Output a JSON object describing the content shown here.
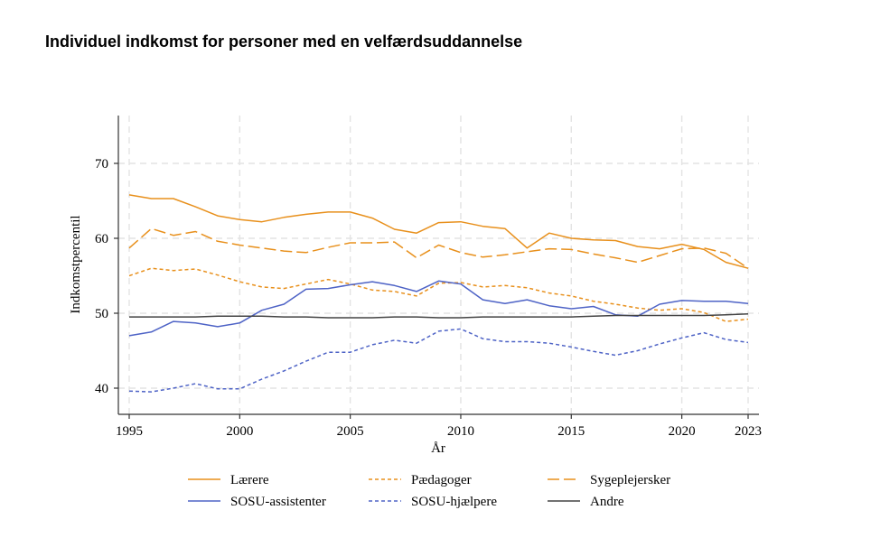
{
  "title": "Individuel indkomst for personer med en velfærdsuddannelse",
  "chart_data": {
    "type": "line",
    "title": "Individuel indkomst for personer med en velfærdsuddannelse",
    "xlabel": "År",
    "ylabel": "Indkomstpercentil",
    "x": [
      1995,
      1996,
      1997,
      1998,
      1999,
      2000,
      2001,
      2002,
      2003,
      2004,
      2005,
      2006,
      2007,
      2008,
      2009,
      2010,
      2011,
      2012,
      2013,
      2014,
      2015,
      2016,
      2017,
      2018,
      2019,
      2020,
      2021,
      2022,
      2023
    ],
    "xticks": [
      1995,
      2000,
      2005,
      2010,
      2015,
      2020,
      2023
    ],
    "yticks": [
      40,
      50,
      60,
      70
    ],
    "xlim": [
      1995,
      2023
    ],
    "ylim": [
      36.5,
      76
    ],
    "grid": true,
    "legend_position": "bottom",
    "series": [
      {
        "name": "Lærere",
        "color": "#E8901C",
        "dash": "solid",
        "values": [
          65.8,
          65.3,
          65.3,
          64.2,
          63.0,
          62.5,
          62.2,
          62.8,
          63.2,
          63.5,
          63.5,
          62.7,
          61.2,
          60.7,
          62.1,
          62.2,
          61.6,
          61.3,
          58.7,
          60.7,
          60.0,
          59.8,
          59.7,
          58.9,
          58.6,
          59.2,
          58.5,
          56.8,
          56.0
        ]
      },
      {
        "name": "Pædagoger",
        "color": "#E8901C",
        "dash": "short",
        "values": [
          55.0,
          56.0,
          55.7,
          55.9,
          55.1,
          54.2,
          53.5,
          53.3,
          53.9,
          54.5,
          53.9,
          53.1,
          52.9,
          52.3,
          54.0,
          54.1,
          53.5,
          53.7,
          53.4,
          52.7,
          52.3,
          51.6,
          51.2,
          50.7,
          50.4,
          50.6,
          50.1,
          48.9,
          49.2
        ]
      },
      {
        "name": "Sygeplejersker",
        "color": "#E8901C",
        "dash": "long",
        "values": [
          58.7,
          61.3,
          60.4,
          60.9,
          59.6,
          59.1,
          58.7,
          58.3,
          58.1,
          58.8,
          59.4,
          59.4,
          59.5,
          57.4,
          59.1,
          58.1,
          57.5,
          57.8,
          58.2,
          58.6,
          58.5,
          57.9,
          57.4,
          56.8,
          57.7,
          58.6,
          58.7,
          58.0,
          56.0
        ]
      },
      {
        "name": "SOSU-assistenter",
        "color": "#4E63C6",
        "dash": "solid",
        "values": [
          47.0,
          47.5,
          48.9,
          48.7,
          48.2,
          48.7,
          50.4,
          51.2,
          53.2,
          53.3,
          53.8,
          54.2,
          53.7,
          52.9,
          54.3,
          53.9,
          51.8,
          51.3,
          51.8,
          51.0,
          50.6,
          50.9,
          49.8,
          49.6,
          51.2,
          51.7,
          51.6,
          51.6,
          51.3
        ]
      },
      {
        "name": "SOSU-hjælpere",
        "color": "#4E63C6",
        "dash": "short",
        "values": [
          39.6,
          39.5,
          40.0,
          40.6,
          39.9,
          39.9,
          41.2,
          42.3,
          43.6,
          44.8,
          44.8,
          45.8,
          46.4,
          46.0,
          47.6,
          47.9,
          46.6,
          46.2,
          46.2,
          46.0,
          45.5,
          44.9,
          44.4,
          45.0,
          45.9,
          46.7,
          47.4,
          46.5,
          46.1
        ]
      },
      {
        "name": "Andre",
        "color": "#444444",
        "dash": "solid",
        "values": [
          49.5,
          49.5,
          49.5,
          49.5,
          49.6,
          49.6,
          49.6,
          49.5,
          49.5,
          49.4,
          49.4,
          49.4,
          49.5,
          49.5,
          49.4,
          49.4,
          49.5,
          49.5,
          49.5,
          49.5,
          49.5,
          49.6,
          49.7,
          49.7,
          49.7,
          49.7,
          49.7,
          49.8,
          49.9
        ]
      }
    ]
  }
}
